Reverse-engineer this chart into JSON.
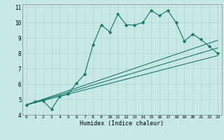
{
  "xlabel": "Humidex (Indice chaleur)",
  "background_color": "#c8e8e8",
  "grid_color": "#b0d4d4",
  "line_color": "#1a7a6a",
  "xlim": [
    -0.5,
    23.5
  ],
  "ylim": [
    4,
    11.2
  ],
  "xticks": [
    0,
    1,
    2,
    3,
    4,
    5,
    6,
    7,
    8,
    9,
    10,
    11,
    12,
    13,
    14,
    15,
    16,
    17,
    18,
    19,
    20,
    21,
    22,
    23
  ],
  "yticks": [
    4,
    5,
    6,
    7,
    8,
    9,
    10,
    11
  ],
  "series_x": [
    0,
    1,
    2,
    3,
    4,
    5,
    6,
    7,
    8,
    9,
    10,
    11,
    12,
    13,
    14,
    15,
    16,
    17,
    18,
    19,
    20,
    21,
    22,
    23
  ],
  "series_y": [
    4.65,
    4.85,
    4.9,
    4.35,
    5.2,
    5.35,
    6.05,
    6.65,
    8.55,
    9.85,
    9.4,
    10.55,
    9.85,
    9.85,
    10.0,
    10.8,
    10.45,
    10.8,
    10.0,
    8.8,
    9.25,
    8.9,
    8.45,
    8.0
  ],
  "line1_x": [
    0,
    23
  ],
  "line1_y": [
    4.65,
    8.85
  ],
  "line2_x": [
    0,
    23
  ],
  "line2_y": [
    4.65,
    7.85
  ],
  "line3_x": [
    0,
    23
  ],
  "line3_y": [
    4.65,
    8.35
  ]
}
